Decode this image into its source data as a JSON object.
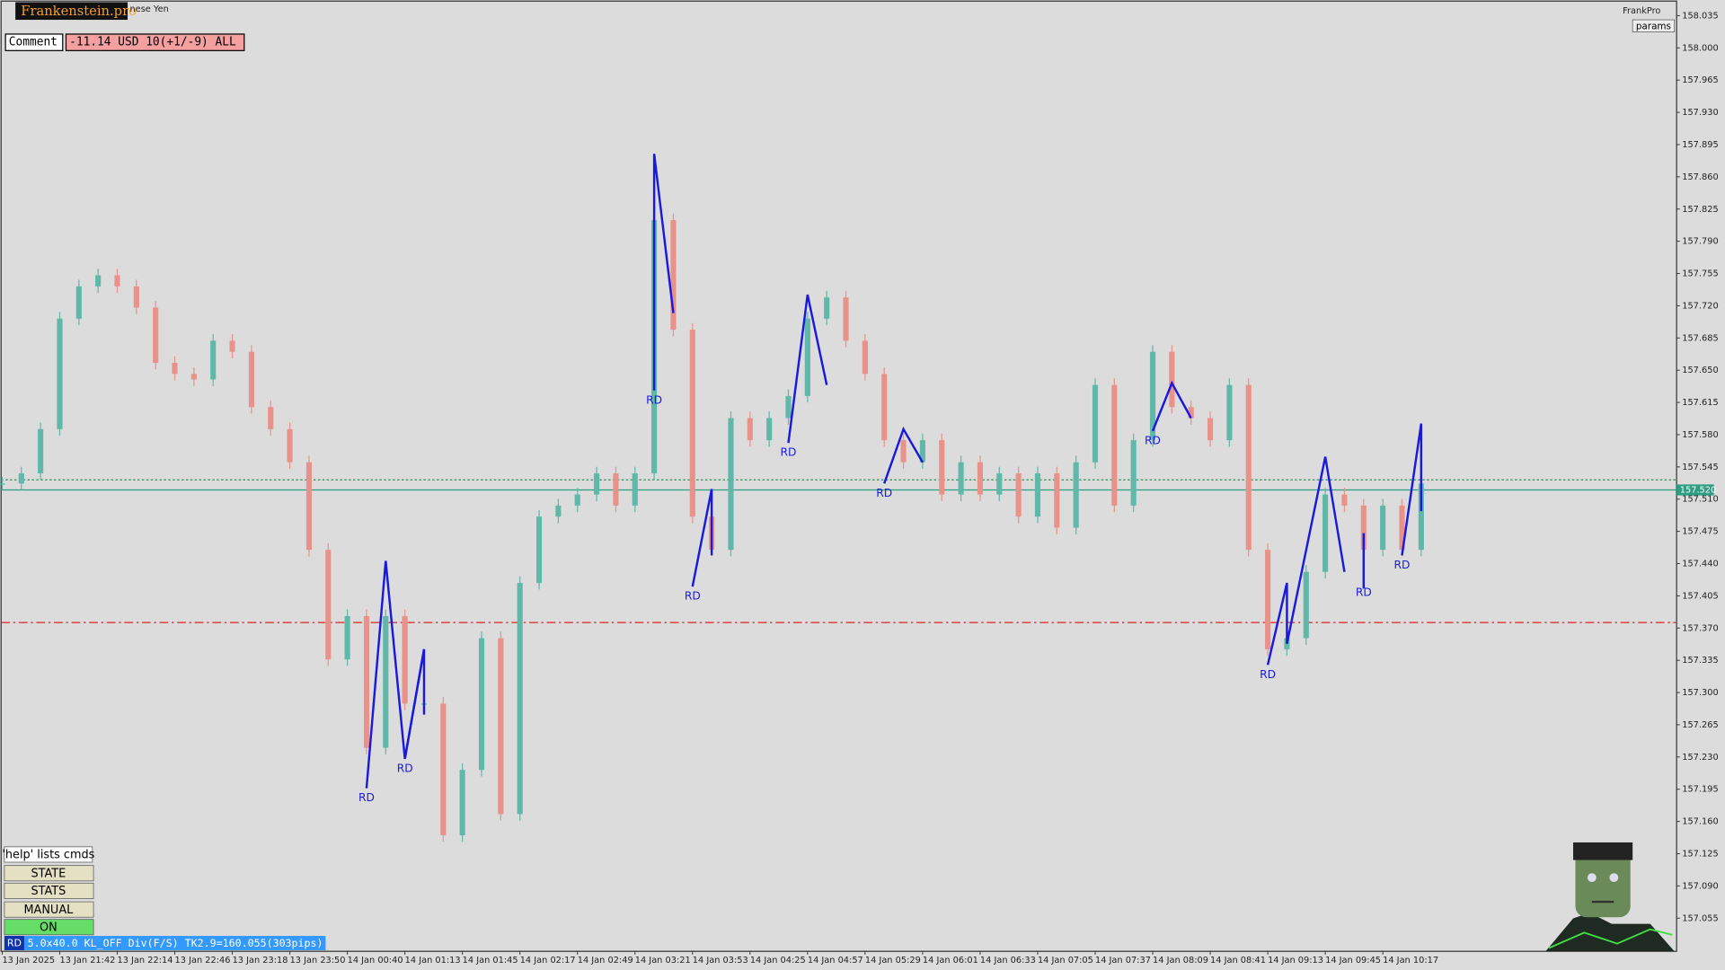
{
  "header": {
    "brand": "Frankenstein.pro",
    "symbol_desc": "nese Yen",
    "account": "FrankPro",
    "params_button": "params"
  },
  "comment": {
    "label": "Comment",
    "value": "-11.14 USD 10(+1/-9) ALL"
  },
  "buttons": [
    "'help' lists cmds",
    "STATE",
    "STATS",
    "MANUAL",
    "ON"
  ],
  "status": {
    "tag": "RD",
    "text": "5.0x40.0 KL_OFF Div(F/S) TK2.9=160.055(303pips)"
  },
  "chart_data": {
    "type": "candle",
    "up_color": "#5fb8a8",
    "down_color": "#e8928a",
    "categories": [
      "13 Jan 2025",
      null,
      null,
      "13 Jan 21:42",
      null,
      null,
      "13 Jan 22:14",
      null,
      null,
      "13 Jan 22:46",
      null,
      null,
      "13 Jan 23:18",
      null,
      null,
      "13 Jan 23:50",
      null,
      null,
      "14 Jan 00:40",
      null,
      null,
      "14 Jan 01:13",
      null,
      null,
      "14 Jan 01:45",
      null,
      null,
      "14 Jan 02:17",
      null,
      null,
      "14 Jan 02:49",
      null,
      null,
      "14 Jan 03:21",
      null,
      null,
      "14 Jan 03:53",
      null,
      null,
      "14 Jan 04:25",
      null,
      null,
      "14 Jan 04:57",
      null,
      null,
      "14 Jan 05:29",
      null,
      null,
      "14 Jan 06:01",
      null,
      null,
      "14 Jan 06:33",
      null,
      null,
      "14 Jan 07:05",
      null,
      null,
      "14 Jan 07:37",
      null,
      null,
      "14 Jan 08:09",
      null,
      null,
      "14 Jan 08:41",
      null,
      null,
      "14 Jan 09:13",
      null,
      null,
      "14 Jan 09:45",
      null,
      null,
      "14 Jan 10:17",
      null,
      null
    ],
    "values": [
      157.527,
      157.538,
      157.586,
      157.706,
      157.741,
      157.753,
      157.741,
      157.718,
      157.658,
      157.646,
      157.64,
      157.682,
      157.67,
      157.61,
      157.586,
      157.55,
      157.455,
      157.336,
      157.383,
      157.24,
      157.383,
      157.288,
      157.288,
      157.145,
      157.216,
      157.359,
      157.168,
      157.419,
      157.491,
      157.503,
      157.515,
      157.538,
      157.503,
      157.538,
      157.813,
      157.694,
      157.491,
      157.455,
      157.598,
      157.574,
      157.598,
      157.622,
      157.706,
      157.729,
      157.682,
      157.646,
      157.574,
      157.55,
      157.574,
      157.515,
      157.55,
      157.515,
      157.538,
      157.491,
      157.538,
      157.479,
      157.55,
      157.634,
      157.503,
      157.574,
      157.67,
      157.61,
      157.598,
      157.574,
      157.634,
      157.455,
      157.347,
      157.359,
      157.431,
      157.515,
      157.503,
      157.455,
      157.503,
      157.455,
      157.527
    ],
    "ylim": [
      157.019,
      158.052
    ],
    "yticks": [
      158.035,
      {
        "value": 158.0,
        "label": "158.000"
      },
      157.965,
      {
        "value": 157.93,
        "label": "157.930"
      },
      157.895,
      {
        "value": 157.86,
        "label": "157.860"
      },
      157.825,
      {
        "value": 157.79,
        "label": "157.790"
      },
      157.755,
      {
        "value": 157.72,
        "label": "157.720"
      },
      157.685,
      {
        "value": 157.65,
        "label": "157.650"
      },
      157.615,
      {
        "value": 157.58,
        "label": "157.580"
      },
      157.545,
      {
        "value": 157.51,
        "label": "157.510"
      },
      157.475,
      {
        "value": 157.44,
        "label": "157.440"
      },
      157.405,
      {
        "value": 157.37,
        "label": "157.370"
      },
      157.335,
      {
        "value": 157.3,
        "label": "157.300"
      },
      157.265,
      {
        "value": 157.23,
        "label": "157.230"
      },
      157.195,
      {
        "value": 157.16,
        "label": "157.160"
      },
      157.125,
      {
        "value": 157.09,
        "label": "157.090"
      },
      157.055
    ],
    "grid": false,
    "levels": [
      {
        "value": 157.531,
        "color": "#2e8b57",
        "style": "dotted"
      },
      {
        "value": 157.52,
        "label": "157.520",
        "color": "#2e9e80",
        "style": "solid"
      },
      {
        "value": 157.376,
        "color": "#dd2222",
        "style": "dashdot"
      }
    ],
    "pattern_color": "#1a1adc",
    "patterns": [
      {
        "label": "RD",
        "x": [
          19,
          20,
          21,
          22,
          21
        ],
        "y": [
          157.196,
          157.443,
          157.228,
          157.347,
          157.228
        ]
      },
      {
        "label": "RD",
        "x": [
          21,
          22,
          22
        ],
        "y": [
          157.228,
          157.347,
          157.276
        ]
      },
      {
        "label": "RD",
        "x": [
          34,
          34,
          35
        ],
        "y": [
          157.628,
          157.885,
          157.712
        ]
      },
      {
        "label": "RD",
        "x": [
          36,
          37,
          37
        ],
        "y": [
          157.415,
          157.521,
          157.449
        ]
      },
      {
        "label": "RD",
        "x": [
          41,
          42,
          43
        ],
        "y": [
          157.571,
          157.732,
          157.634
        ]
      },
      {
        "label": "RD",
        "x": [
          46,
          47,
          48
        ],
        "y": [
          157.527,
          157.586,
          157.55
        ]
      },
      {
        "label": "RD",
        "x": [
          60,
          61,
          62
        ],
        "y": [
          157.584,
          157.636,
          157.598
        ]
      },
      {
        "label": "RD",
        "x": [
          66,
          67,
          67,
          69,
          70
        ],
        "y": [
          157.33,
          157.419,
          157.353,
          157.556,
          157.431
        ]
      },
      {
        "label": "RD",
        "x": [
          71,
          71,
          71
        ],
        "y": [
          157.419,
          157.473,
          157.413
        ]
      },
      {
        "label": "RD",
        "x": [
          73,
          74,
          74
        ],
        "y": [
          157.449,
          157.592,
          157.497
        ]
      }
    ]
  }
}
